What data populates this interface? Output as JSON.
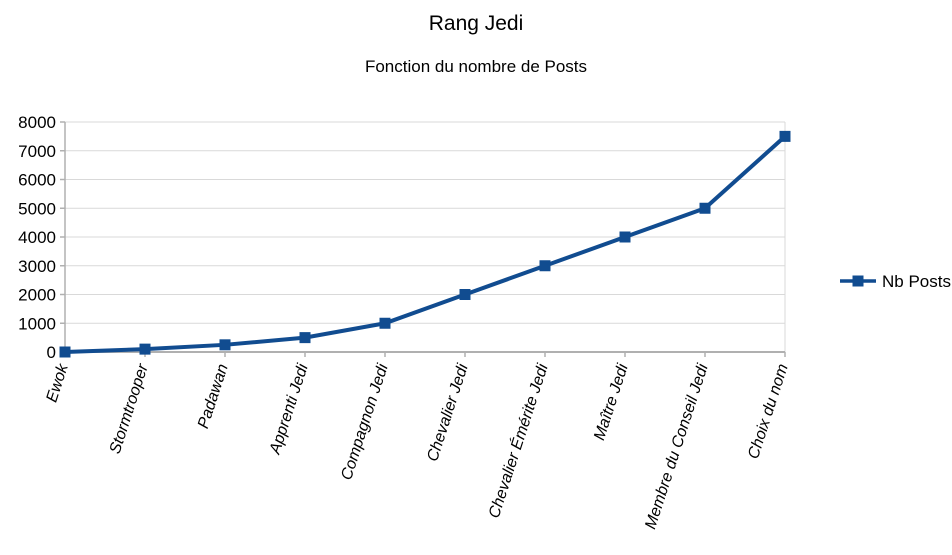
{
  "chart_data": {
    "type": "line",
    "title": "Rang Jedi",
    "subtitle": "Fonction du nombre de Posts",
    "categories": [
      "Ewok",
      "Stormtrooper",
      "Padawan",
      "Apprenti Jedi",
      "Compagnon Jedi",
      "Chevalier Jedi",
      "Chevalier Émérite Jedi",
      "Maître Jedi",
      "Membre du Conseil Jedi",
      "Choix du nom"
    ],
    "series": [
      {
        "name": "Nb Posts",
        "values": [
          0,
          100,
          250,
          500,
          1000,
          2000,
          3000,
          4000,
          5000,
          7500
        ]
      }
    ],
    "xlabel": "",
    "ylabel": "",
    "ylim": [
      0,
      8000
    ],
    "y_ticks": [
      0,
      1000,
      2000,
      3000,
      4000,
      5000,
      6000,
      7000,
      8000
    ],
    "grid": "horizontal",
    "legend_position": "right",
    "x_label_rotation_deg": -72,
    "x_label_style": "italic",
    "marker": "square",
    "colors": {
      "series": "#114C90",
      "gridline": "#D9D9D9",
      "axis": "#B0B0B0",
      "text": "#000000",
      "background": "#FFFFFF"
    }
  }
}
